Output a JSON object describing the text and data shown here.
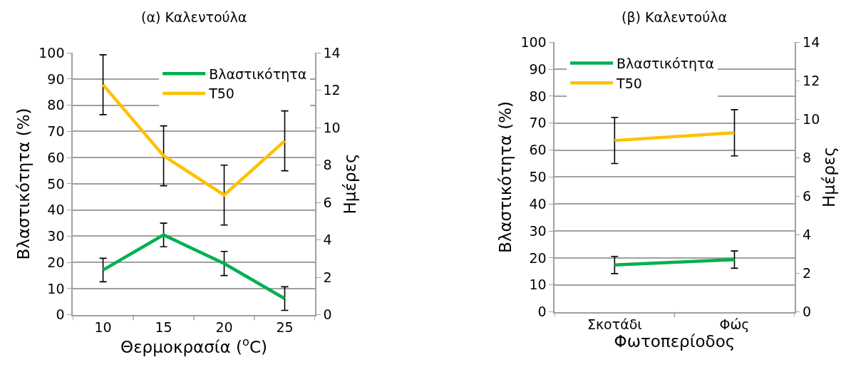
{
  "chart_data": [
    {
      "type": "line",
      "title": "(α) Καλεντούλα",
      "xlabel": "Θερμοκρασία ($^{o}$C)",
      "ylabel": "Βλαστικότητα (%)",
      "y2label": "Ημέρες",
      "categories": [
        "10",
        "15",
        "20",
        "25"
      ],
      "series": [
        {
          "name": "Βλαστικότητα",
          "color": "#00b050",
          "values": [
            17.1,
            30.5,
            19.6,
            6.2
          ],
          "errors": [
            4.5,
            4.5,
            4.6,
            4.5
          ]
        },
        {
          "name": "T50",
          "color": "#ffc000",
          "axis": "y2",
          "values": [
            12.3,
            8.5,
            6.4,
            9.3
          ],
          "errors": [
            1.6,
            1.6,
            1.6,
            1.6
          ]
        }
      ],
      "ylim": [
        0,
        100
      ],
      "yticks": [
        0,
        10,
        20,
        30,
        40,
        50,
        60,
        70,
        80,
        90,
        100
      ],
      "y2lim": [
        0,
        14
      ],
      "y2ticks": [
        0,
        2,
        4,
        6,
        8,
        10,
        12,
        14
      ],
      "grid": "y",
      "legend": "top right"
    },
    {
      "type": "line",
      "title": "(β) Καλεντούλα",
      "xlabel": "Φωτοπερίοδος",
      "ylabel": "Βλαστικότητα (%)",
      "y2label": "Ημέρες",
      "categories": [
        "Σκοτάδι",
        "Φώς"
      ],
      "series": [
        {
          "name": "Βλαστικότητα",
          "color": "#00b050",
          "values": [
            17.4,
            19.4
          ],
          "errors": [
            3.2,
            3.2
          ]
        },
        {
          "name": "T50",
          "color": "#ffc000",
          "axis": "y2",
          "values": [
            8.9,
            9.3
          ],
          "errors": [
            1.2,
            1.2
          ]
        }
      ],
      "ylim": [
        0,
        100
      ],
      "yticks": [
        0,
        10,
        20,
        30,
        40,
        50,
        60,
        70,
        80,
        90,
        100
      ],
      "y2lim": [
        0,
        14
      ],
      "y2ticks": [
        0,
        2,
        4,
        6,
        8,
        10,
        12,
        14
      ],
      "grid": "y",
      "legend": "top left"
    }
  ]
}
